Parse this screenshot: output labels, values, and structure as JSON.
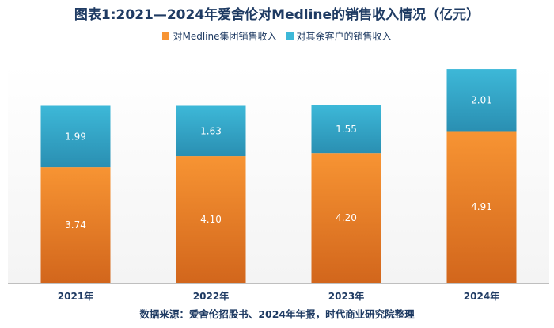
{
  "colors": {
    "series1_top": "#f79433",
    "series1_bottom": "#d2661c",
    "series2_top": "#3db8d8",
    "series2_bottom": "#2a8fb2",
    "title": "#1f3b63",
    "grid_bg": "#f4f4f4"
  },
  "chart_data": {
    "type": "bar",
    "stacked": true,
    "title": "图表1:2021—2024年爱舍伦对Medline的销售收入情况（亿元）",
    "categories": [
      "2021年",
      "2022年",
      "2023年",
      "2024年"
    ],
    "series": [
      {
        "name": "对Medline集团销售收入",
        "values": [
          3.74,
          4.1,
          4.2,
          4.91
        ],
        "labels": [
          "3.74",
          "4.10",
          "4.20",
          "4.91"
        ]
      },
      {
        "name": "对其余客户的销售收入",
        "values": [
          1.99,
          1.63,
          1.55,
          2.01
        ],
        "labels": [
          "1.99",
          "1.63",
          "1.55",
          "2.01"
        ]
      }
    ],
    "ylim": [
      0,
      7.05
    ],
    "legend_position": "top-center",
    "source": "数据来源：爱舍伦招股书、2024年年报，时代商业研究院整理"
  }
}
